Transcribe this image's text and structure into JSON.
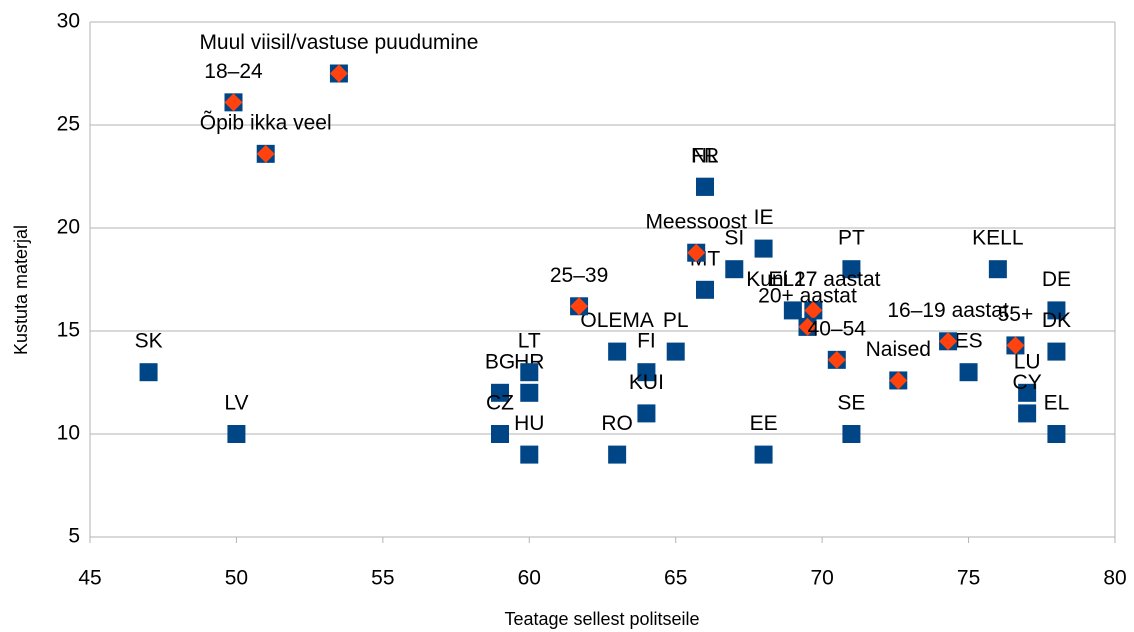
{
  "chart_data": {
    "type": "scatter",
    "xlabel": "Teatage sellest politseile",
    "ylabel": "Kustuta materjal",
    "xlim": [
      45,
      80
    ],
    "xticks": [
      45,
      50,
      55,
      60,
      65,
      70,
      75,
      80
    ],
    "ylim": [
      5,
      30
    ],
    "yticks": [
      5,
      10,
      15,
      20,
      25,
      30
    ],
    "grid": true,
    "series": [
      {
        "color": "#004586",
        "marker": "square",
        "labels": [
          "SK",
          "LV",
          "BG",
          "CZ",
          "HR",
          "LT",
          "HU",
          "RO",
          "OLEMA",
          "FI",
          "KUI",
          "PL",
          "NL",
          "FR",
          "MT",
          "SI",
          "IE",
          "EE",
          "EL27",
          "PT",
          "SE",
          "ES",
          "KELL",
          "LU",
          "CY",
          "DE",
          "DK",
          "EL"
        ],
        "x": [
          47,
          50,
          59,
          59,
          60,
          60,
          60,
          63,
          63,
          64,
          64,
          65,
          66,
          66,
          66,
          67,
          68,
          68,
          69,
          71,
          71,
          75,
          76,
          77,
          77,
          78,
          78,
          78
        ],
        "values": [
          13,
          10,
          12,
          10,
          12,
          13,
          9,
          9,
          14,
          13,
          11,
          14,
          22,
          22,
          17,
          18,
          19,
          9,
          16,
          18,
          10,
          13,
          18,
          12,
          11,
          16,
          14,
          10
        ]
      },
      {
        "color": "#ff420e",
        "marker": "diamond",
        "labels": [
          "Muul viisil/vastuse puudumine",
          "18–24",
          "Õpib ikka veel",
          "25–39",
          "Meessoost",
          "Kuni 17 aastat",
          "20+ aastat",
          "40–54",
          "Naised",
          "16–19 aastat",
          "55+"
        ],
        "x": [
          53.5,
          49.9,
          51,
          61.7,
          65.7,
          69.7,
          69.5,
          70.5,
          72.6,
          74.3,
          76.6
        ],
        "values": [
          27.5,
          26.1,
          23.6,
          16.2,
          18.8,
          16,
          15.2,
          13.6,
          12.6,
          14.5,
          14.3
        ]
      }
    ]
  }
}
